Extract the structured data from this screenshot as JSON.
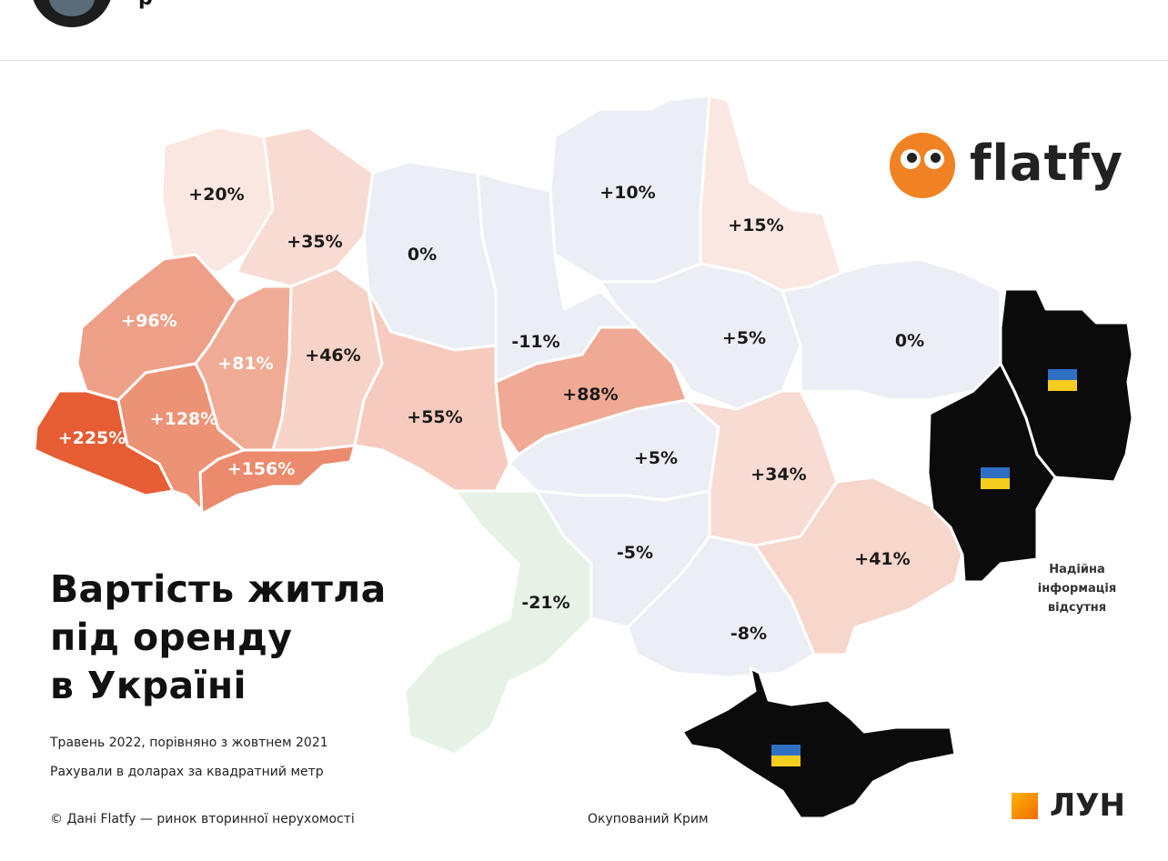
{
  "header": {
    "username": "p"
  },
  "brand": {
    "flatfy": "flatfy",
    "lun": "ЛУН"
  },
  "title": {
    "line1": "Вартість житла",
    "line2": "під оренду",
    "line3": "в Україні"
  },
  "notes": {
    "period": "Травень 2022, порівняно з жовтнем 2021",
    "unit": "Рахували в доларах за квадратний метр",
    "source": "© Дані Flatfy — ринок вторинної нерухомості",
    "crimea": "Окупований Крим",
    "no_info_1": "Надійна",
    "no_info_2": "інформація",
    "no_info_3": "відсутня"
  },
  "regions": [
    {
      "label": "+20%",
      "color": "#fbe7e1"
    },
    {
      "label": "+35%",
      "color": "#f8dbd2"
    },
    {
      "label": "0%",
      "color": "#eceef5"
    },
    {
      "label": "+10%",
      "color": "#eceef5"
    },
    {
      "label": "+15%",
      "color": "#fbe7e1"
    },
    {
      "label": "+96%",
      "color": "#ee9f88"
    },
    {
      "label": "+81%",
      "color": "#f0ab95"
    },
    {
      "label": "+46%",
      "color": "#f7d3c7"
    },
    {
      "label": "-11%",
      "color": "#eceef5"
    },
    {
      "label": "+5%",
      "color": "#eceef5"
    },
    {
      "label": "0%",
      "color": "#eceef5"
    },
    {
      "label": "+225%",
      "color": "#e65c33"
    },
    {
      "label": "+128%",
      "color": "#ec9275"
    },
    {
      "label": "+156%",
      "color": "#eb8a6c"
    },
    {
      "label": "+55%",
      "color": "#f6cbbd"
    },
    {
      "label": "+88%",
      "color": "#f0a994"
    },
    {
      "label": "+5%",
      "color": "#eceef5"
    },
    {
      "label": "+34%",
      "color": "#f8dbd2"
    },
    {
      "label": "+41%",
      "color": "#f7d6cb"
    },
    {
      "label": "-5%",
      "color": "#eceef5"
    },
    {
      "label": "-21%",
      "color": "#e6f2e6"
    },
    {
      "label": "-8%",
      "color": "#eceef5"
    }
  ],
  "occupied_color": "#0b0b0b",
  "flag_colors": [
    "#2f6fc4",
    "#f5cd1e"
  ]
}
